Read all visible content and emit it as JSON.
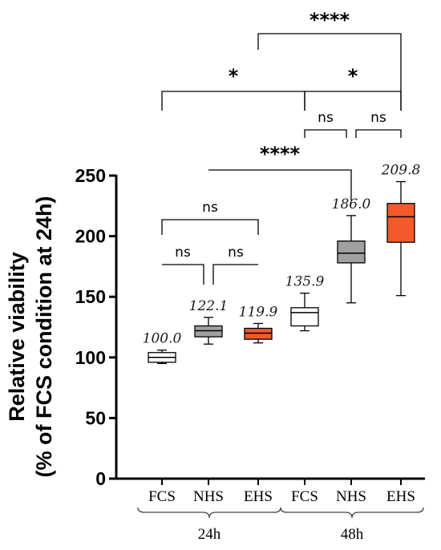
{
  "chart_data": {
    "type": "box",
    "ylabel_line1": "Relative viability",
    "ylabel_line2": "(% of FCS condition at 24h)",
    "ylim": [
      0,
      250
    ],
    "yticks": [
      "0",
      "50",
      "100",
      "150",
      "200",
      "250"
    ],
    "yticks_values": [
      0,
      50,
      100,
      150,
      200,
      250
    ],
    "groups": [
      {
        "label": "24h",
        "categories": [
          "FCS",
          "NHS",
          "EHS"
        ]
      },
      {
        "label": "48h",
        "categories": [
          "FCS",
          "NHS",
          "EHS"
        ]
      }
    ],
    "boxes": [
      {
        "category": "FCS",
        "group": "24h",
        "min": 95,
        "q1": 96,
        "median": 100,
        "q3": 104,
        "max": 106,
        "mean_label": "100.0",
        "color": "#ffffff"
      },
      {
        "category": "NHS",
        "group": "24h",
        "min": 111,
        "q1": 117,
        "median": 122,
        "q3": 126,
        "max": 133,
        "mean_label": "122.1",
        "color": "#a0a0a0"
      },
      {
        "category": "EHS",
        "group": "24h",
        "min": 112,
        "q1": 115,
        "median": 120,
        "q3": 124,
        "max": 128,
        "mean_label": "119.9",
        "color": "#f25a2c"
      },
      {
        "category": "FCS",
        "group": "48h",
        "min": 122,
        "q1": 126,
        "median": 137,
        "q3": 141,
        "max": 153,
        "mean_label": "135.9",
        "color": "#ffffff"
      },
      {
        "category": "NHS",
        "group": "48h",
        "min": 145,
        "q1": 178,
        "median": 186,
        "q3": 196,
        "max": 217,
        "mean_label": "186.0",
        "color": "#a0a0a0"
      },
      {
        "category": "EHS",
        "group": "48h",
        "min": 151,
        "q1": 195,
        "median": 216,
        "q3": 227,
        "max": 245,
        "mean_label": "209.8",
        "color": "#f25a2c"
      }
    ],
    "significance": [
      {
        "from": 0,
        "to": 1,
        "label": "ns"
      },
      {
        "from": 1,
        "to": 2,
        "label": "ns"
      },
      {
        "from": 0,
        "to": 2,
        "label": "ns"
      },
      {
        "from": 1,
        "to": 4,
        "label": "****"
      },
      {
        "from": 3,
        "to": 4,
        "label": "ns"
      },
      {
        "from": 4,
        "to": 5,
        "label": "ns"
      },
      {
        "from": 0,
        "to": 3,
        "label": "*"
      },
      {
        "from": 3,
        "to": 5,
        "label": "*"
      },
      {
        "from": 2,
        "to": 5,
        "label": "****"
      }
    ]
  }
}
